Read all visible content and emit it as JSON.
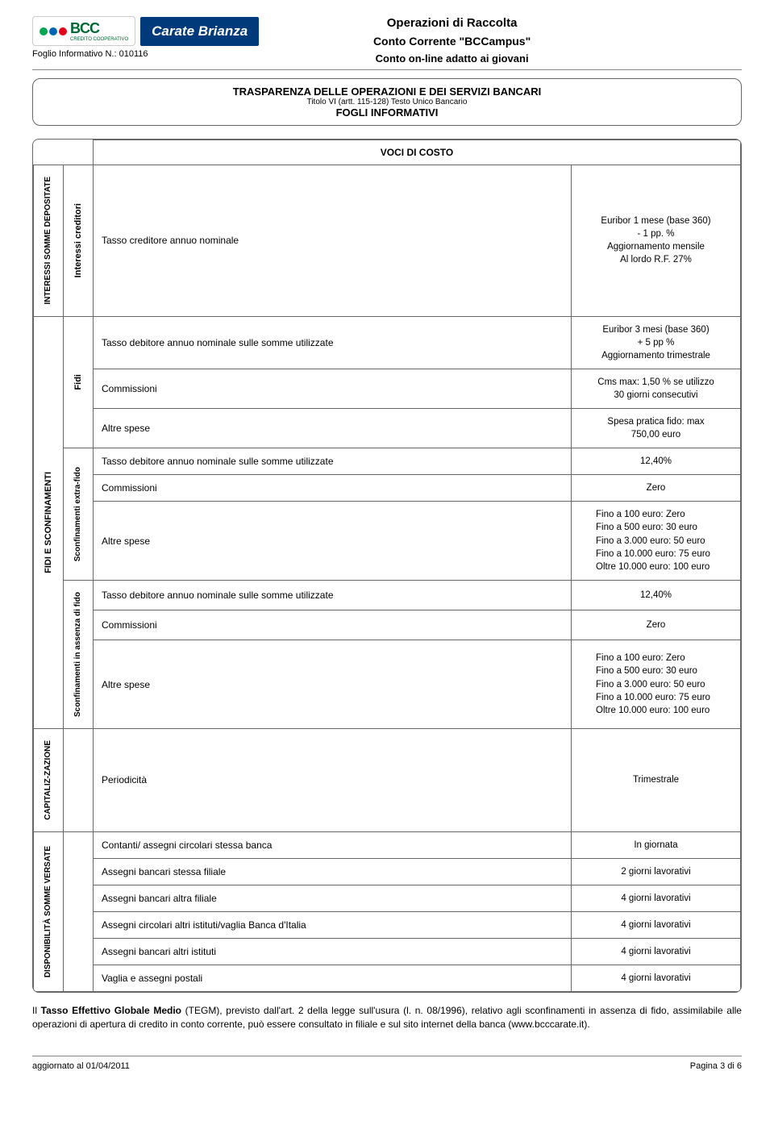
{
  "colors": {
    "brand_green": "#006633",
    "brand_blue": "#003a7a",
    "dot_green": "#00a651",
    "dot_blue": "#0066b3",
    "dot_red": "#e2001a",
    "border_gray": "#666666"
  },
  "header": {
    "bcc_text": "BCC",
    "bcc_sub": "CREDITO COOPERATIVO",
    "brand_name": "Carate Brianza",
    "foglio_label": "Foglio Informativo N.: 010116",
    "title1": "Operazioni di Raccolta",
    "title2": "Conto Corrente \"BCCampus\"",
    "title3": "Conto on-line adatto ai giovani"
  },
  "transparency": {
    "line1": "TRASPARENZA DELLE OPERAZIONI E DEI SERVIZI BANCARI",
    "line2": "Titolo VI (artt. 115-128) Testo Unico Bancario",
    "line3": "FOGLI INFORMATIVI"
  },
  "cost_table": {
    "header": "VOCI DI COSTO",
    "sections": {
      "interessi": {
        "outer_label": "INTERESSI SOMME DEPOSITATE",
        "inner_label": "Interessi creditori",
        "rows": [
          {
            "desc": "Tasso creditore annuo nominale",
            "val": "Euribor 1 mese (base 360)\n- 1 pp. %\nAggiornamento mensile\nAl lordo R.F. 27%"
          }
        ]
      },
      "fidi_sconf": {
        "outer_label": "FIDI E SCONFINAMENTI",
        "groups": [
          {
            "inner_label": "Fidi",
            "rows": [
              {
                "desc": "Tasso debitore annuo nominale sulle somme utilizzate",
                "val": "Euribor 3 mesi (base 360)\n+ 5 pp %\nAggiornamento trimestrale"
              },
              {
                "desc": "Commissioni",
                "val": "Cms max: 1,50 % se utilizzo\n30 giorni consecutivi"
              },
              {
                "desc": "Altre spese",
                "val": "Spesa pratica fido: max\n750,00 euro"
              }
            ]
          },
          {
            "inner_label": "Sconfinamenti extra-fido",
            "rows": [
              {
                "desc": "Tasso debitore annuo nominale sulle somme utilizzate",
                "val": "12,40%"
              },
              {
                "desc": "Commissioni",
                "val": "Zero"
              },
              {
                "desc": "Altre spese",
                "val": "Fino a 100 euro: Zero\nFino a 500 euro: 30 euro\nFino a 3.000 euro: 50 euro\nFino a 10.000 euro: 75 euro\nOltre 10.000 euro: 100 euro"
              }
            ]
          },
          {
            "inner_label": "Sconfinamenti in assenza di fido",
            "rows": [
              {
                "desc": "Tasso debitore annuo nominale sulle somme utilizzate",
                "val": "12,40%"
              },
              {
                "desc": "Commissioni",
                "val": "Zero"
              },
              {
                "desc": "Altre spese",
                "val": "Fino a 100 euro: Zero\nFino a 500 euro: 30 euro\nFino a 3.000 euro: 50 euro\nFino a 10.000 euro: 75 euro\nOltre 10.000 euro: 100 euro"
              }
            ]
          }
        ]
      },
      "capitaliz": {
        "outer_label": "CAPITALIZ-ZAZIONE",
        "rows": [
          {
            "desc": "Periodicità",
            "val": "Trimestrale"
          }
        ]
      },
      "dispon": {
        "outer_label": "DISPONIBILITÀ SOMME VERSATE",
        "rows": [
          {
            "desc": "Contanti/ assegni circolari stessa banca",
            "val": "In giornata"
          },
          {
            "desc": "Assegni bancari stessa filiale",
            "val": "2 giorni lavorativi"
          },
          {
            "desc": "Assegni bancari altra filiale",
            "val": "4 giorni lavorativi"
          },
          {
            "desc": "Assegni circolari altri istituti/vaglia Banca d'Italia",
            "val": "4 giorni lavorativi"
          },
          {
            "desc": "Assegni bancari altri istituti",
            "val": "4 giorni lavorativi"
          },
          {
            "desc": "Vaglia e assegni postali",
            "val": "4 giorni lavorativi"
          }
        ]
      }
    }
  },
  "body_text": {
    "prefix": "Il ",
    "bold": "Tasso Effettivo Globale Medio",
    "rest": " (TEGM), previsto dall'art. 2 della legge sull'usura (l. n. 08/1996), relativo agli sconfinamenti in assenza di fido, assimilabile alle operazioni di apertura di credito in conto corrente, può essere consultato in filiale e sul sito internet della banca (www.bcccarate.it)."
  },
  "footer": {
    "left": "aggiornato al 01/04/2011",
    "right": "Pagina 3 di 6"
  }
}
